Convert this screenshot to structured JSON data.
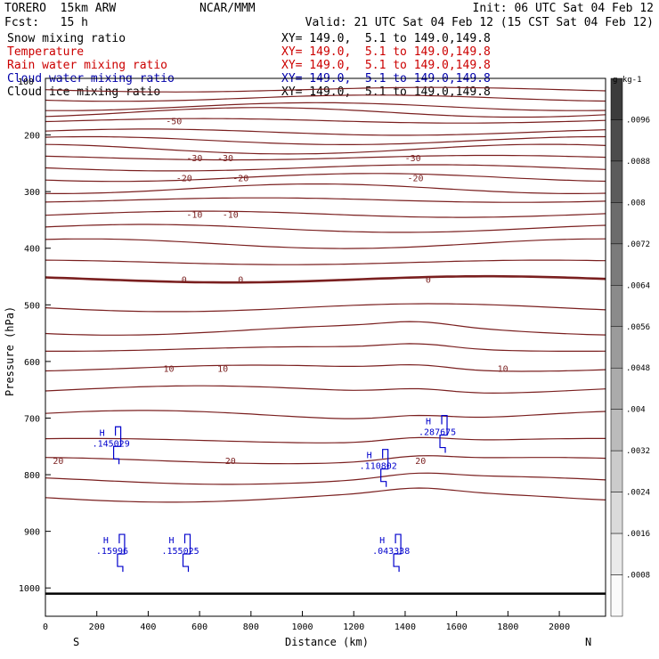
{
  "header": {
    "model": "TORERO  15km ARW",
    "center": "NCAR/MMM",
    "init": "Init: 06 UTC Sat 04 Feb 12",
    "fcst": "Fcst:   15 h",
    "valid": "Valid: 21 UTC Sat 04 Feb 12 (15 CST Sat 04 Feb 12)",
    "fields": [
      {
        "label": "Snow mixing ratio",
        "color": "#000000",
        "xy": "XY= 149.0,  5.1 to 149.0,149.8"
      },
      {
        "label": "Temperature",
        "color": "#cc0000",
        "xy": "XY= 149.0,  5.1 to 149.0,149.8"
      },
      {
        "label": "Rain water mixing ratio",
        "color": "#cc0000",
        "xy": "XY= 149.0,  5.1 to 149.0,149.8"
      },
      {
        "label": "Cloud water mixing ratio",
        "color": "#0000aa",
        "xy": "XY= 149.0,  5.1 to 149.0,149.8"
      },
      {
        "label": "Cloud ice mixing ratio",
        "color": "#000000",
        "xy": "XY= 149.0,  5.1 to 149.0,149.8"
      }
    ],
    "overlap_text": "100"
  },
  "chart_data": {
    "type": "contour-cross-section",
    "xlabel": "Distance (km)",
    "ylabel": "Pressure (hPa)",
    "xlim": [
      0,
      2180
    ],
    "ylim": [
      1050,
      100
    ],
    "x_ticks": [
      0,
      200,
      400,
      600,
      800,
      1000,
      1200,
      1400,
      1600,
      1800,
      2000
    ],
    "y_ticks": [
      100,
      200,
      300,
      400,
      500,
      600,
      700,
      800,
      900,
      1000
    ],
    "x_ends": {
      "left": "S",
      "right": "N"
    },
    "temperature_contours": [
      {
        "p": 120
      },
      {
        "p": 135
      },
      {
        "p": 150
      },
      {
        "p": 160
      },
      {
        "p": 175,
        "labels": [
          {
            "x": 500,
            "text": "-50"
          }
        ]
      },
      {
        "p": 195
      },
      {
        "p": 210
      },
      {
        "p": 225
      },
      {
        "p": 240,
        "labels": [
          {
            "x": 580,
            "text": "-30"
          },
          {
            "x": 700,
            "text": "-30"
          },
          {
            "x": 1430,
            "text": "-30"
          }
        ]
      },
      {
        "p": 258
      },
      {
        "p": 275,
        "labels": [
          {
            "x": 540,
            "text": "-20"
          },
          {
            "x": 760,
            "text": "-20"
          },
          {
            "x": 1440,
            "text": "-20"
          }
        ]
      },
      {
        "p": 295
      },
      {
        "p": 315
      },
      {
        "p": 340,
        "labels": [
          {
            "x": 580,
            "text": "-10"
          },
          {
            "x": 720,
            "text": "-10"
          }
        ]
      },
      {
        "p": 365
      },
      {
        "p": 392
      },
      {
        "p": 425
      },
      {
        "p": 455,
        "labels": [
          {
            "x": 540,
            "text": "0"
          },
          {
            "x": 760,
            "text": "0"
          },
          {
            "x": 1490,
            "text": "0"
          }
        ],
        "bold": true
      },
      {
        "p": 505
      },
      {
        "p": 545
      },
      {
        "p": 578
      },
      {
        "p": 612,
        "labels": [
          {
            "x": 480,
            "text": "10"
          },
          {
            "x": 690,
            "text": "10"
          },
          {
            "x": 1780,
            "text": "10"
          }
        ]
      },
      {
        "p": 650
      },
      {
        "p": 695
      },
      {
        "p": 740
      },
      {
        "p": 775,
        "labels": [
          {
            "x": 50,
            "text": "20"
          },
          {
            "x": 720,
            "text": "20"
          },
          {
            "x": 1460,
            "text": "20"
          }
        ]
      },
      {
        "p": 810
      },
      {
        "p": 840
      }
    ],
    "cloud_water_maxima": [
      {
        "x": 210,
        "p": 750,
        "value": ".145029"
      },
      {
        "x": 1250,
        "p": 790,
        "value": ".110802"
      },
      {
        "x": 1480,
        "p": 730,
        "value": ".287675"
      },
      {
        "x": 225,
        "p": 940,
        "value": ".15996"
      },
      {
        "x": 480,
        "p": 940,
        "value": ".155025"
      },
      {
        "x": 1300,
        "p": 940,
        "value": ".043338"
      }
    ],
    "colorbar": {
      "units": "g kg-1",
      "labels": [
        ".0096",
        ".0088",
        ".008",
        ".0072",
        ".0064",
        ".0056",
        ".0048",
        ".004",
        ".0032",
        ".0024",
        ".0016",
        ".0008"
      ]
    }
  }
}
